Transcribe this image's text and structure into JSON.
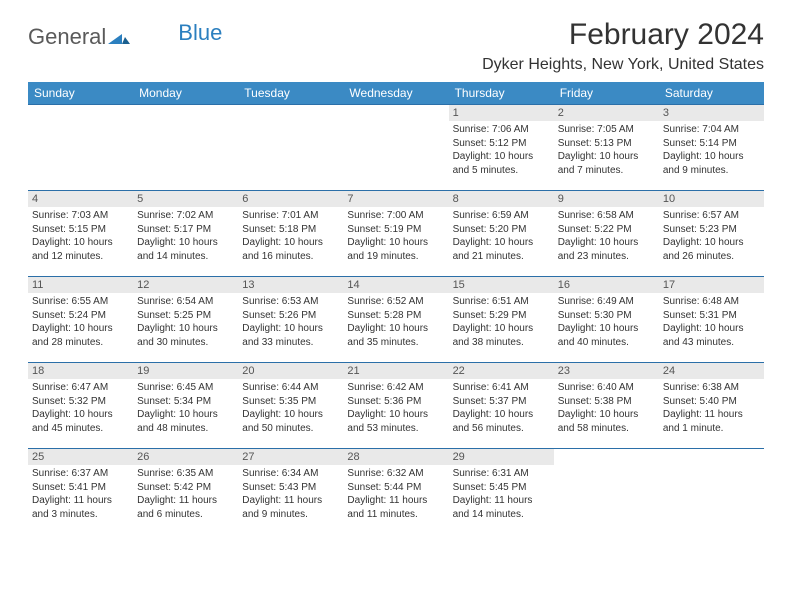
{
  "logo": {
    "text_gray": "General",
    "text_blue": "Blue"
  },
  "title": "February 2024",
  "location": "Dyker Heights, New York, United States",
  "colors": {
    "header_bg": "#3b8ac4",
    "header_text": "#ffffff",
    "daynum_bg": "#e9e9e9",
    "border": "#2b6fa8",
    "logo_gray": "#5a5a5a",
    "logo_blue": "#2b7fbf"
  },
  "day_headers": [
    "Sunday",
    "Monday",
    "Tuesday",
    "Wednesday",
    "Thursday",
    "Friday",
    "Saturday"
  ],
  "weeks": [
    [
      null,
      null,
      null,
      null,
      {
        "n": "1",
        "sr": "Sunrise: 7:06 AM",
        "ss": "Sunset: 5:12 PM",
        "dl": "Daylight: 10 hours and 5 minutes."
      },
      {
        "n": "2",
        "sr": "Sunrise: 7:05 AM",
        "ss": "Sunset: 5:13 PM",
        "dl": "Daylight: 10 hours and 7 minutes."
      },
      {
        "n": "3",
        "sr": "Sunrise: 7:04 AM",
        "ss": "Sunset: 5:14 PM",
        "dl": "Daylight: 10 hours and 9 minutes."
      }
    ],
    [
      {
        "n": "4",
        "sr": "Sunrise: 7:03 AM",
        "ss": "Sunset: 5:15 PM",
        "dl": "Daylight: 10 hours and 12 minutes."
      },
      {
        "n": "5",
        "sr": "Sunrise: 7:02 AM",
        "ss": "Sunset: 5:17 PM",
        "dl": "Daylight: 10 hours and 14 minutes."
      },
      {
        "n": "6",
        "sr": "Sunrise: 7:01 AM",
        "ss": "Sunset: 5:18 PM",
        "dl": "Daylight: 10 hours and 16 minutes."
      },
      {
        "n": "7",
        "sr": "Sunrise: 7:00 AM",
        "ss": "Sunset: 5:19 PM",
        "dl": "Daylight: 10 hours and 19 minutes."
      },
      {
        "n": "8",
        "sr": "Sunrise: 6:59 AM",
        "ss": "Sunset: 5:20 PM",
        "dl": "Daylight: 10 hours and 21 minutes."
      },
      {
        "n": "9",
        "sr": "Sunrise: 6:58 AM",
        "ss": "Sunset: 5:22 PM",
        "dl": "Daylight: 10 hours and 23 minutes."
      },
      {
        "n": "10",
        "sr": "Sunrise: 6:57 AM",
        "ss": "Sunset: 5:23 PM",
        "dl": "Daylight: 10 hours and 26 minutes."
      }
    ],
    [
      {
        "n": "11",
        "sr": "Sunrise: 6:55 AM",
        "ss": "Sunset: 5:24 PM",
        "dl": "Daylight: 10 hours and 28 minutes."
      },
      {
        "n": "12",
        "sr": "Sunrise: 6:54 AM",
        "ss": "Sunset: 5:25 PM",
        "dl": "Daylight: 10 hours and 30 minutes."
      },
      {
        "n": "13",
        "sr": "Sunrise: 6:53 AM",
        "ss": "Sunset: 5:26 PM",
        "dl": "Daylight: 10 hours and 33 minutes."
      },
      {
        "n": "14",
        "sr": "Sunrise: 6:52 AM",
        "ss": "Sunset: 5:28 PM",
        "dl": "Daylight: 10 hours and 35 minutes."
      },
      {
        "n": "15",
        "sr": "Sunrise: 6:51 AM",
        "ss": "Sunset: 5:29 PM",
        "dl": "Daylight: 10 hours and 38 minutes."
      },
      {
        "n": "16",
        "sr": "Sunrise: 6:49 AM",
        "ss": "Sunset: 5:30 PM",
        "dl": "Daylight: 10 hours and 40 minutes."
      },
      {
        "n": "17",
        "sr": "Sunrise: 6:48 AM",
        "ss": "Sunset: 5:31 PM",
        "dl": "Daylight: 10 hours and 43 minutes."
      }
    ],
    [
      {
        "n": "18",
        "sr": "Sunrise: 6:47 AM",
        "ss": "Sunset: 5:32 PM",
        "dl": "Daylight: 10 hours and 45 minutes."
      },
      {
        "n": "19",
        "sr": "Sunrise: 6:45 AM",
        "ss": "Sunset: 5:34 PM",
        "dl": "Daylight: 10 hours and 48 minutes."
      },
      {
        "n": "20",
        "sr": "Sunrise: 6:44 AM",
        "ss": "Sunset: 5:35 PM",
        "dl": "Daylight: 10 hours and 50 minutes."
      },
      {
        "n": "21",
        "sr": "Sunrise: 6:42 AM",
        "ss": "Sunset: 5:36 PM",
        "dl": "Daylight: 10 hours and 53 minutes."
      },
      {
        "n": "22",
        "sr": "Sunrise: 6:41 AM",
        "ss": "Sunset: 5:37 PM",
        "dl": "Daylight: 10 hours and 56 minutes."
      },
      {
        "n": "23",
        "sr": "Sunrise: 6:40 AM",
        "ss": "Sunset: 5:38 PM",
        "dl": "Daylight: 10 hours and 58 minutes."
      },
      {
        "n": "24",
        "sr": "Sunrise: 6:38 AM",
        "ss": "Sunset: 5:40 PM",
        "dl": "Daylight: 11 hours and 1 minute."
      }
    ],
    [
      {
        "n": "25",
        "sr": "Sunrise: 6:37 AM",
        "ss": "Sunset: 5:41 PM",
        "dl": "Daylight: 11 hours and 3 minutes."
      },
      {
        "n": "26",
        "sr": "Sunrise: 6:35 AM",
        "ss": "Sunset: 5:42 PM",
        "dl": "Daylight: 11 hours and 6 minutes."
      },
      {
        "n": "27",
        "sr": "Sunrise: 6:34 AM",
        "ss": "Sunset: 5:43 PM",
        "dl": "Daylight: 11 hours and 9 minutes."
      },
      {
        "n": "28",
        "sr": "Sunrise: 6:32 AM",
        "ss": "Sunset: 5:44 PM",
        "dl": "Daylight: 11 hours and 11 minutes."
      },
      {
        "n": "29",
        "sr": "Sunrise: 6:31 AM",
        "ss": "Sunset: 5:45 PM",
        "dl": "Daylight: 11 hours and 14 minutes."
      },
      null,
      null
    ]
  ]
}
